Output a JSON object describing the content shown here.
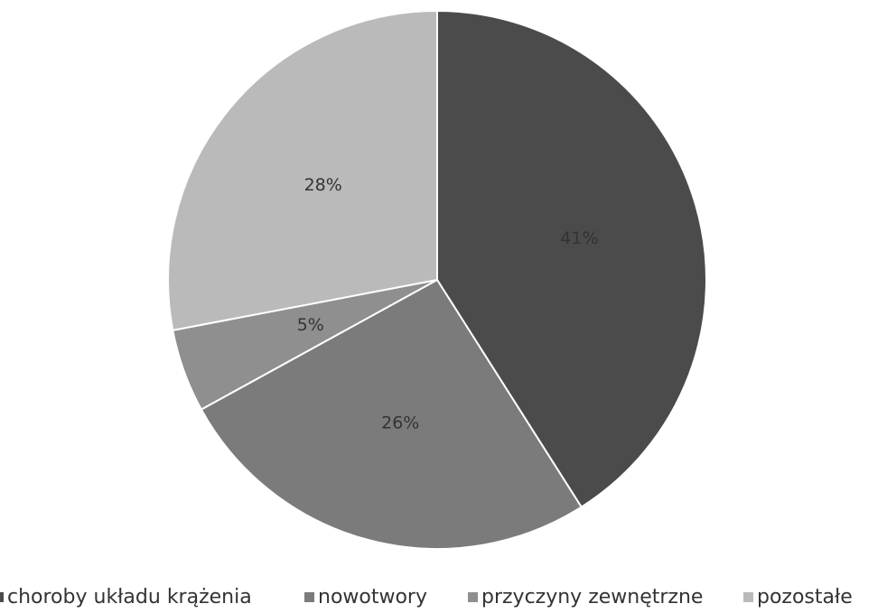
{
  "chart_data": {
    "type": "pie",
    "categories": [
      "choroby układu krążenia",
      "nowotwory",
      "przyczyny zewnętrzne",
      "pozostałe"
    ],
    "values": [
      41,
      26,
      5,
      28
    ],
    "value_labels": [
      "41%",
      "26%",
      "5%",
      "28%"
    ],
    "colors": [
      "#4b4b4b",
      "#7b7b7b",
      "#8f8f8f",
      "#bababa"
    ]
  }
}
